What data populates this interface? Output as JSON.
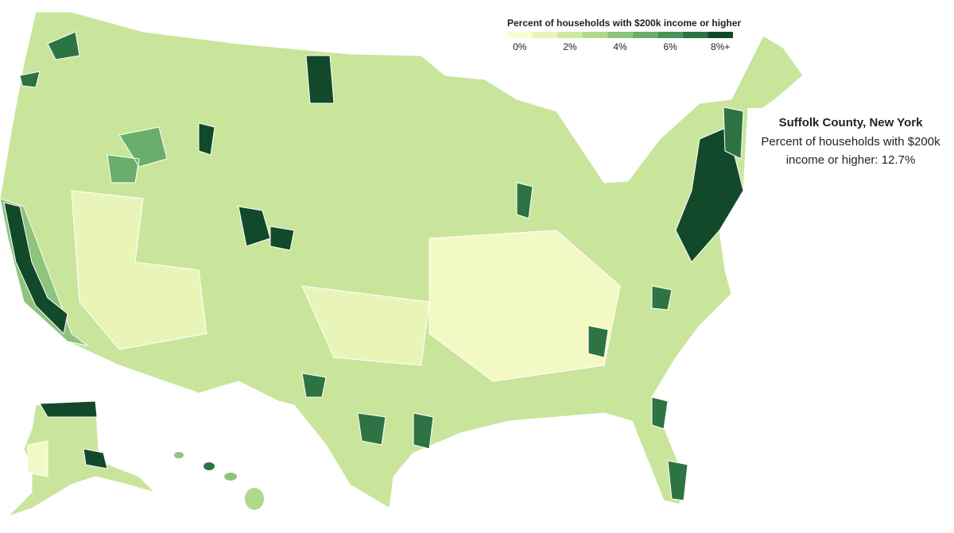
{
  "legend": {
    "title": "Percent of households with $200k income or higher",
    "colors": [
      "#fbfdd0",
      "#e9f5b8",
      "#d0e8a0",
      "#b1d88d",
      "#8ec47e",
      "#6aae6c",
      "#4a9358",
      "#2d7343",
      "#12492b"
    ],
    "range": [
      -0.5,
      8.5
    ],
    "ticks": [
      {
        "value": 0,
        "label": "0%"
      },
      {
        "value": 2,
        "label": "2%"
      },
      {
        "value": 4,
        "label": "4%"
      },
      {
        "value": 6,
        "label": "6%"
      },
      {
        "value": 8,
        "label": "8%+"
      }
    ]
  },
  "tooltip": {
    "title": "Suffolk County, New York",
    "text": "Percent of households with $200k income or higher: 12.7%"
  }
}
